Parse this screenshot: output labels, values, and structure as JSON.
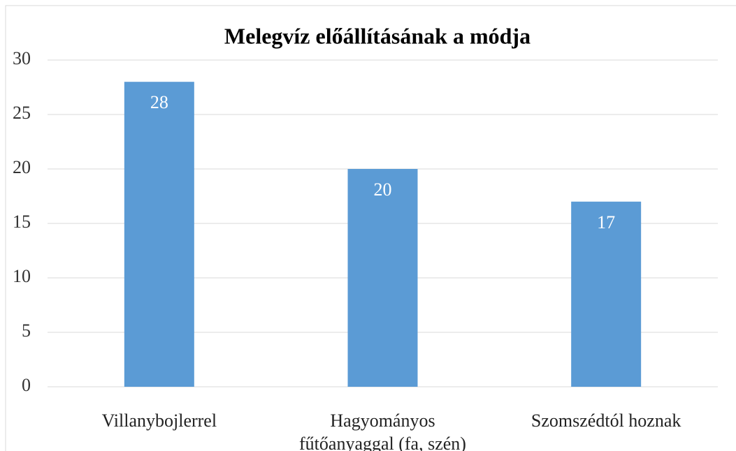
{
  "chart_data": {
    "type": "bar",
    "title": "Melegvíz előállításának a módja",
    "categories": [
      "Villanybojlerrel",
      "Hagyományos fűtőanyaggal (fa, szén)",
      "Szomszédtól hoznak"
    ],
    "values": [
      28,
      20,
      17
    ],
    "color": "#5b9bd5",
    "ylim": [
      0,
      30
    ],
    "yticks": [
      0,
      5,
      10,
      15,
      20,
      25,
      30
    ],
    "grid": true
  }
}
